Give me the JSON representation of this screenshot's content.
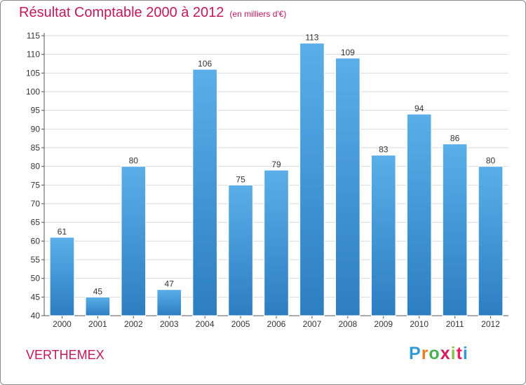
{
  "colors": {
    "title": "#c2185b",
    "bar_top": "#5aafe8",
    "bar_bottom": "#2c7ec1",
    "grid": "#d9d9d9",
    "logo": [
      "#2e9ad7",
      "#e67e22",
      "#4caf50",
      "#d81b60",
      "#8bc34a",
      "#e91e63"
    ]
  },
  "header": {
    "title": "Résultat Comptable 2000 à 2012",
    "unit": "(en milliers d'€)"
  },
  "footer": {
    "location": "VERTHEMEX",
    "logo_text": "Proxiti",
    "logo_icon": "proxiti-logo"
  },
  "chart_data": {
    "type": "bar",
    "title": "Résultat Comptable 2000 à 2012",
    "subtitle": "(en milliers d'€)",
    "xlabel": "",
    "ylabel": "",
    "categories": [
      "2000",
      "2001",
      "2002",
      "2003",
      "2004",
      "2005",
      "2006",
      "2007",
      "2008",
      "2009",
      "2010",
      "2011",
      "2012"
    ],
    "values": [
      61,
      45,
      80,
      47,
      106,
      75,
      79,
      113,
      109,
      83,
      94,
      86,
      80
    ],
    "ylim": [
      40,
      115
    ],
    "yticks": [
      40,
      45,
      50,
      55,
      60,
      65,
      70,
      75,
      80,
      85,
      90,
      95,
      100,
      105,
      110,
      115
    ],
    "grid": true,
    "legend": "none"
  }
}
